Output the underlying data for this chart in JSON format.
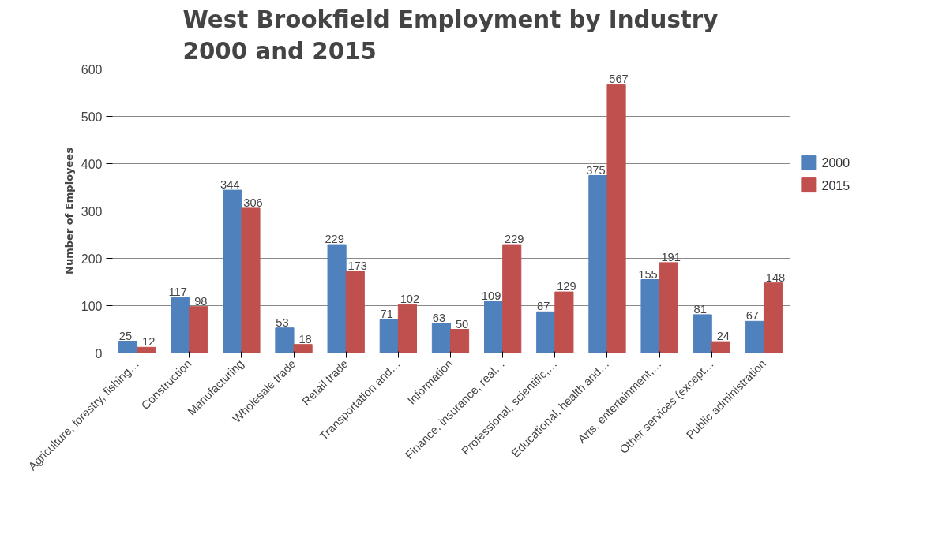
{
  "chart_data": {
    "type": "bar",
    "title": "West Brookfield Employment by Industry\n2000 and 2015",
    "ylabel": "Number of Employees",
    "categories": [
      "Agriculture, forestry, fishing…",
      "Construction",
      "Manufacturing",
      "Wholesale trade",
      "Retail trade",
      "Transportation and…",
      "Information",
      "Finance, insurance, real…",
      "Professional, scientific,…",
      "Educational, health and…",
      "Arts, entertainment,…",
      "Other services (except…",
      "Public administration"
    ],
    "series": [
      {
        "name": "2000",
        "color": "#4f81bd",
        "values": [
          25,
          117,
          344,
          53,
          229,
          71,
          63,
          109,
          87,
          375,
          155,
          81,
          67
        ]
      },
      {
        "name": "2015",
        "color": "#c0504d",
        "values": [
          12,
          98,
          306,
          18,
          173,
          102,
          50,
          229,
          129,
          567,
          191,
          24,
          148
        ]
      }
    ],
    "ylim": [
      0,
      600
    ],
    "yticks": [
      0,
      100,
      200,
      300,
      400,
      500,
      600
    ],
    "grid": "y",
    "legend": "right",
    "data_labels": true
  }
}
